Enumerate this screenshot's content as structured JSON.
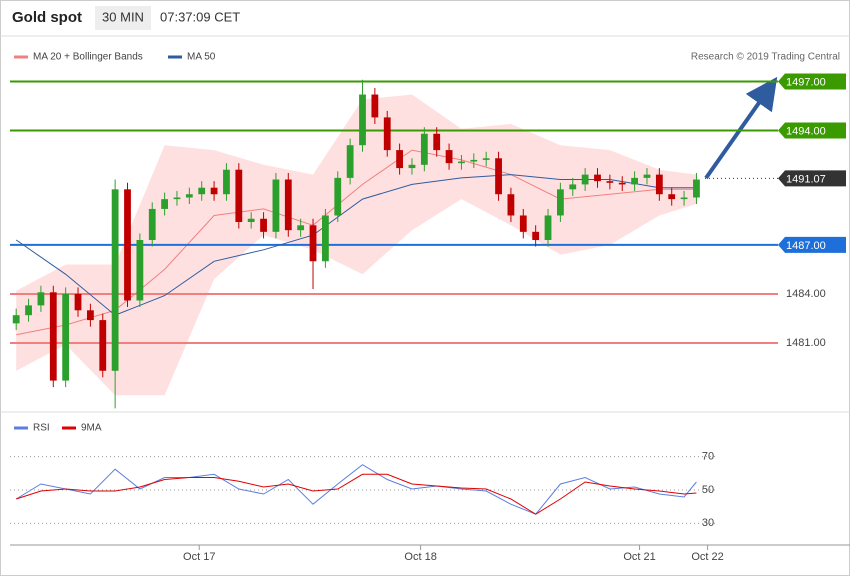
{
  "header": {
    "title": "Gold spot",
    "interval": "30 MIN",
    "time": "07:37:09 CET"
  },
  "attribution": "Research © 2019 Trading Central",
  "chart_data": [
    {
      "type": "candlestick",
      "x": [
        0,
        1,
        2,
        3,
        4,
        5,
        6,
        7,
        8,
        9,
        10,
        11,
        12,
        13,
        14,
        15,
        16,
        17,
        18,
        19,
        20,
        21,
        22,
        23,
        24,
        25,
        26,
        27,
        28,
        29,
        30,
        31,
        32,
        33,
        34,
        35,
        36,
        37,
        38,
        39,
        40,
        41,
        42,
        43,
        44,
        45,
        46,
        47,
        48,
        49,
        50,
        51,
        52,
        53,
        54,
        55
      ],
      "open": [
        1482.2,
        1482.7,
        1483.3,
        1484.1,
        1478.7,
        1484.0,
        1483.0,
        1482.4,
        1479.3,
        1490.4,
        1483.6,
        1487.3,
        1489.2,
        1489.8,
        1489.9,
        1490.1,
        1490.5,
        1490.1,
        1491.6,
        1488.4,
        1488.6,
        1487.8,
        1491.0,
        1487.9,
        1488.2,
        1486.0,
        1488.8,
        1491.1,
        1493.1,
        1496.2,
        1494.8,
        1492.8,
        1491.7,
        1491.9,
        1493.8,
        1492.8,
        1492.0,
        1492.1,
        1492.2,
        1492.3,
        1490.1,
        1488.8,
        1487.8,
        1487.3,
        1488.8,
        1490.4,
        1490.7,
        1491.3,
        1490.9,
        1490.8,
        1490.7,
        1491.1,
        1491.3,
        1490.1,
        1489.8,
        1489.9
      ],
      "high": [
        1483.1,
        1483.7,
        1484.5,
        1484.5,
        1484.4,
        1484.4,
        1483.4,
        1482.8,
        1491.0,
        1490.8,
        1487.7,
        1489.6,
        1490.2,
        1490.3,
        1490.5,
        1490.9,
        1490.9,
        1492.0,
        1492.0,
        1489.0,
        1489.0,
        1491.4,
        1491.4,
        1488.6,
        1488.6,
        1489.2,
        1491.5,
        1493.5,
        1497.1,
        1496.6,
        1495.2,
        1493.2,
        1492.3,
        1494.2,
        1494.2,
        1493.2,
        1492.5,
        1492.6,
        1492.7,
        1492.7,
        1490.5,
        1489.2,
        1488.2,
        1489.2,
        1490.8,
        1491.1,
        1491.7,
        1491.7,
        1491.3,
        1491.2,
        1491.5,
        1491.7,
        1491.7,
        1490.5,
        1490.3,
        1491.4
      ],
      "low": [
        1481.8,
        1482.3,
        1482.9,
        1478.3,
        1478.3,
        1482.6,
        1482.0,
        1478.9,
        1477.0,
        1483.2,
        1483.2,
        1486.9,
        1488.8,
        1489.4,
        1489.5,
        1489.7,
        1489.7,
        1489.7,
        1488.0,
        1488.0,
        1487.4,
        1487.4,
        1487.5,
        1487.5,
        1484.3,
        1485.6,
        1488.4,
        1490.7,
        1492.7,
        1494.4,
        1492.4,
        1491.3,
        1491.3,
        1491.5,
        1492.4,
        1491.6,
        1491.6,
        1491.7,
        1491.8,
        1489.7,
        1488.4,
        1487.4,
        1486.9,
        1486.9,
        1488.4,
        1490.0,
        1490.3,
        1490.5,
        1490.4,
        1490.3,
        1490.3,
        1490.7,
        1489.7,
        1489.4,
        1489.4,
        1489.5
      ],
      "close": [
        1482.7,
        1483.3,
        1484.1,
        1478.7,
        1484.0,
        1483.0,
        1482.4,
        1479.3,
        1490.4,
        1483.6,
        1487.3,
        1489.2,
        1489.8,
        1489.9,
        1490.1,
        1490.5,
        1490.1,
        1491.6,
        1488.4,
        1488.6,
        1487.8,
        1491.0,
        1487.9,
        1488.2,
        1486.0,
        1488.8,
        1491.1,
        1493.1,
        1496.2,
        1494.8,
        1492.8,
        1491.7,
        1491.9,
        1493.8,
        1492.8,
        1492.0,
        1492.1,
        1492.2,
        1492.3,
        1490.1,
        1488.8,
        1487.8,
        1487.3,
        1488.8,
        1490.4,
        1490.7,
        1491.3,
        1490.9,
        1490.8,
        1490.7,
        1491.1,
        1491.3,
        1490.1,
        1489.8,
        1489.9,
        1491.0
      ],
      "up_color": "#2ca02c",
      "down_color": "#c00000",
      "bands": {
        "name": "MA 20 + Bollinger Bands",
        "color": "#f08080",
        "fill": "#ffe0e0",
        "x": [
          0,
          4,
          8,
          12,
          16,
          20,
          24,
          28,
          32,
          36,
          40,
          44,
          48,
          52,
          55
        ],
        "upper": [
          1484.2,
          1485.8,
          1485.8,
          1493.1,
          1492.8,
          1491.9,
          1491.3,
          1495.9,
          1496.2,
          1494.1,
          1494.4,
          1493.1,
          1492.8,
          1491.6,
          1491.3
        ],
        "lower": [
          1479.3,
          1480.9,
          1477.8,
          1477.8,
          1484.9,
          1487.6,
          1486.7,
          1485.2,
          1487.9,
          1489.8,
          1488.2,
          1486.4,
          1487.0,
          1488.8,
          1489.5
        ],
        "middle": [
          1481.5,
          1482.1,
          1483.0,
          1485.5,
          1488.8,
          1489.2,
          1488.2,
          1490.7,
          1492.8,
          1492.2,
          1491.3,
          1489.8,
          1490.1,
          1490.4,
          1490.4
        ]
      },
      "series": [
        {
          "name": "MA 50",
          "color": "#2e5c9e",
          "x": [
            0,
            4,
            8,
            12,
            16,
            20,
            24,
            28,
            32,
            36,
            40,
            44,
            48,
            52,
            55
          ],
          "values": [
            1487.3,
            1485.2,
            1482.7,
            1483.9,
            1486.0,
            1486.7,
            1487.6,
            1489.8,
            1490.7,
            1491.1,
            1491.3,
            1491.0,
            1491.0,
            1490.5,
            1490.5
          ]
        }
      ],
      "levels": [
        {
          "value": 1497,
          "label": "1497.00",
          "color": "#3a9a00",
          "tag": true,
          "style": "solid"
        },
        {
          "value": 1494,
          "label": "1494.00",
          "color": "#3a9a00",
          "tag": true,
          "style": "solid"
        },
        {
          "value": 1491.07,
          "label": "1491.07",
          "color": "#333333",
          "tag": true,
          "style": "dotted"
        },
        {
          "value": 1487,
          "label": "1487.00",
          "color": "#1e6fd9",
          "tag": true,
          "style": "solid"
        },
        {
          "value": 1484,
          "label": "1484.00",
          "color": "#f08080",
          "tag": false,
          "style": "solid"
        },
        {
          "value": 1481,
          "label": "1481.00",
          "color": "#f08080",
          "tag": false,
          "style": "solid"
        }
      ],
      "xlim": [
        -0.5,
        56.5
      ],
      "ylim": [
        1476.9,
        1497.7
      ]
    },
    {
      "type": "line",
      "x": [
        0,
        2,
        4,
        6,
        8,
        10,
        12,
        14,
        16,
        18,
        20,
        22,
        24,
        26,
        28,
        30,
        32,
        34,
        36,
        38,
        40,
        42,
        44,
        46,
        48,
        50,
        52,
        54,
        55
      ],
      "series": [
        {
          "name": "RSI",
          "color": "#5b7fe0",
          "values": [
            44.6,
            53.6,
            50.6,
            47.6,
            62.5,
            50.6,
            57.5,
            57.5,
            59.4,
            50.6,
            47.6,
            56.3,
            41.5,
            53.6,
            65.2,
            56.3,
            50.6,
            52.4,
            50.6,
            49.4,
            41.5,
            35.5,
            53.6,
            57.5,
            50.6,
            51.8,
            47.6,
            45.8,
            54.8
          ]
        },
        {
          "name": "9MA",
          "color": "#e00000",
          "values": [
            44.6,
            49.4,
            50.6,
            49.4,
            49.4,
            51.8,
            56.3,
            57.5,
            57.5,
            55.2,
            51.8,
            53.6,
            49.4,
            50.6,
            59.4,
            59.4,
            53.6,
            52.4,
            51.2,
            50.6,
            44.6,
            35.5,
            44.6,
            54.8,
            52.4,
            50.6,
            49.4,
            47.6,
            48.2
          ]
        }
      ],
      "xlim": [
        -0.5,
        56.5
      ],
      "ylim": [
        20,
        80
      ],
      "yticks": [
        30,
        50,
        70
      ],
      "grid": true,
      "xticks": [
        {
          "value": 14.8,
          "label": "Oct 17"
        },
        {
          "value": 32.7,
          "label": "Oct 18"
        },
        {
          "value": 50.4,
          "label": "Oct 21"
        },
        {
          "value": 55.9,
          "label": "Oct 22"
        }
      ]
    }
  ]
}
